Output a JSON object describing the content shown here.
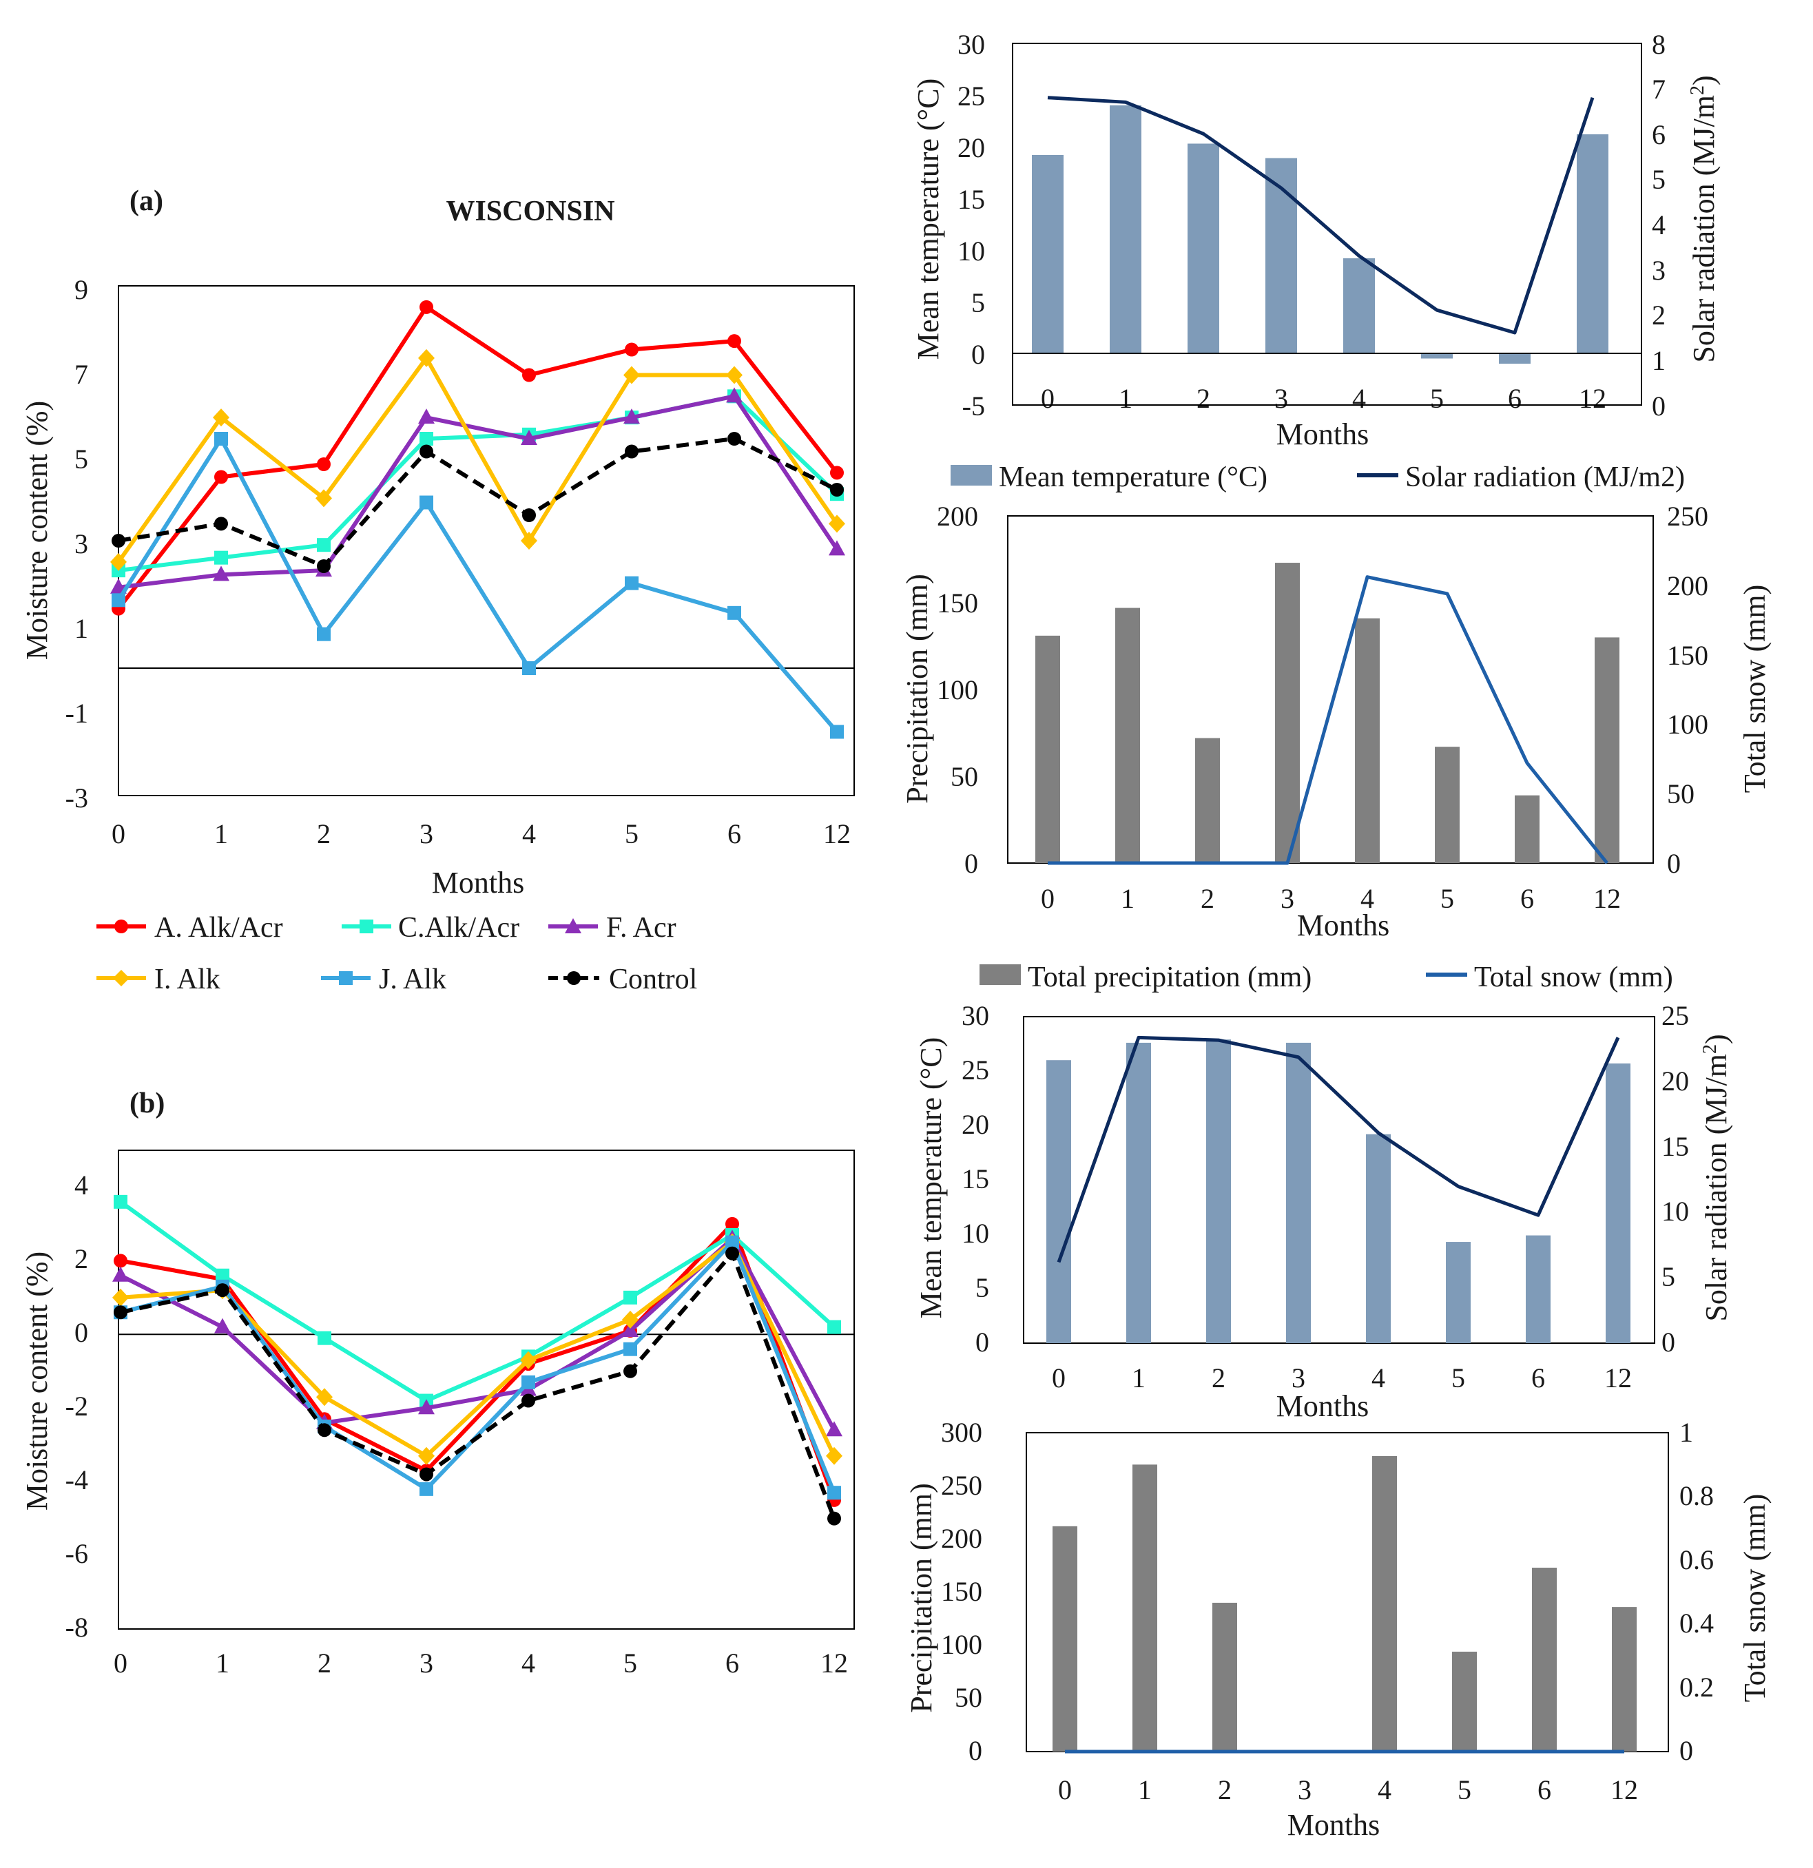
{
  "colors": {
    "a_alk_acr": "#ff0000",
    "c_alk_acr": "#22f5cf",
    "f_acr": "#8b2fb8",
    "i_alk": "#ffc000",
    "j_alk": "#3aa6e0",
    "control": "#000000",
    "temp_bar": "#7f9bb8",
    "precip_bar": "#808080",
    "solar_line": "#0c2a5e",
    "snow_line": "#1f5fa8"
  },
  "chart_data": [
    {
      "id": "a",
      "type": "line",
      "panel_label": "(a)",
      "title": "WISCONSIN",
      "categories": [
        "0",
        "1",
        "2",
        "3",
        "4",
        "5",
        "6",
        "12"
      ],
      "xlabel": "Months",
      "ylabel": "Moisture content (%)",
      "ylim": [
        -3,
        9
      ],
      "yticks": [
        "9",
        "7",
        "5",
        "3",
        "1",
        "-1",
        "-3"
      ],
      "series": [
        {
          "name": "A. Alk/Acr",
          "key": "a_alk_acr",
          "marker": "circle",
          "values": [
            1.4,
            4.5,
            4.8,
            8.5,
            6.9,
            7.5,
            7.7,
            4.6
          ]
        },
        {
          "name": "C.Alk/Acr",
          "key": "c_alk_acr",
          "marker": "square",
          "values": [
            2.3,
            2.6,
            2.9,
            5.4,
            5.5,
            5.9,
            6.4,
            4.1
          ]
        },
        {
          "name": "F. Acr",
          "key": "f_acr",
          "marker": "triangle",
          "values": [
            1.9,
            2.2,
            2.3,
            5.9,
            5.4,
            5.9,
            6.4,
            2.8
          ]
        },
        {
          "name": "I. Alk",
          "key": "i_alk",
          "marker": "diamond",
          "values": [
            2.5,
            5.9,
            4.0,
            7.3,
            3.0,
            6.9,
            6.9,
            3.4
          ]
        },
        {
          "name": "J. Alk",
          "key": "j_alk",
          "marker": "square",
          "values": [
            1.6,
            5.4,
            0.8,
            3.9,
            0.0,
            2.0,
            1.3,
            -1.5
          ]
        },
        {
          "name": "Control",
          "key": "control",
          "marker": "circle",
          "dashed": true,
          "values": [
            3.0,
            3.4,
            2.4,
            5.1,
            3.6,
            5.1,
            5.4,
            4.2
          ]
        }
      ]
    },
    {
      "id": "b",
      "type": "line",
      "panel_label": "(b)",
      "categories": [
        "0",
        "1",
        "2",
        "3",
        "4",
        "5",
        "6",
        "12"
      ],
      "ylabel": "Moisture content (%)",
      "ylim": [
        -8,
        5
      ],
      "yticks": [
        "4",
        "2",
        "0",
        "-2",
        "-4",
        "-6",
        "-8"
      ],
      "series": [
        {
          "name": "A. Alk/Acr",
          "key": "a_alk_acr",
          "marker": "circle",
          "values": [
            2.0,
            1.5,
            -2.3,
            -3.7,
            -0.8,
            0.1,
            3.0,
            -4.5
          ]
        },
        {
          "name": "C.Alk/Acr",
          "key": "c_alk_acr",
          "marker": "square",
          "values": [
            3.6,
            1.6,
            -0.1,
            -1.8,
            -0.6,
            1.0,
            2.7,
            0.2
          ]
        },
        {
          "name": "F. Acr",
          "key": "f_acr",
          "marker": "triangle",
          "values": [
            1.6,
            0.2,
            -2.4,
            -2.0,
            -1.5,
            0.1,
            2.6,
            -2.6
          ]
        },
        {
          "name": "I. Alk",
          "key": "i_alk",
          "marker": "diamond",
          "values": [
            1.0,
            1.2,
            -1.7,
            -3.3,
            -0.7,
            0.4,
            2.5,
            -3.3
          ]
        },
        {
          "name": "J. Alk",
          "key": "j_alk",
          "marker": "square",
          "values": [
            0.6,
            1.3,
            -2.5,
            -4.2,
            -1.3,
            -0.4,
            2.5,
            -4.3
          ]
        },
        {
          "name": "Control",
          "key": "control",
          "marker": "circle",
          "dashed": true,
          "values": [
            0.6,
            1.2,
            -2.6,
            -3.8,
            -1.8,
            -1.0,
            2.2,
            -5.0
          ]
        }
      ]
    },
    {
      "id": "c",
      "type": "bar",
      "categories": [
        "0",
        "1",
        "2",
        "3",
        "4",
        "5",
        "6",
        "12"
      ],
      "xlabel": "Months",
      "ylabel": "Mean temperature (°C)",
      "y2label_main": "Solar radiation (MJ/m",
      "y2label_sup": "2",
      "y2label_end": ")",
      "ylim": [
        -5,
        30
      ],
      "y2lim": [
        0,
        8
      ],
      "yticks": [
        "30",
        "25",
        "20",
        "15",
        "10",
        "5",
        "0",
        "-5"
      ],
      "y2ticks": [
        "8",
        "7",
        "6",
        "5",
        "4",
        "3",
        "2",
        "1",
        "0"
      ],
      "bar_series": {
        "name": "Mean temperature (°C)",
        "key": "temp_bar",
        "values": [
          19.2,
          24.0,
          20.3,
          18.9,
          9.2,
          -0.5,
          -1.0,
          21.2
        ]
      },
      "line_series": {
        "name": "Solar radiation (MJ/m2)",
        "key": "solar_line",
        "values": [
          6.8,
          6.7,
          6.0,
          4.8,
          3.3,
          2.1,
          1.6,
          6.8
        ]
      }
    },
    {
      "id": "d",
      "type": "bar",
      "categories": [
        "0",
        "1",
        "2",
        "3",
        "4",
        "5",
        "6",
        "12"
      ],
      "xlabel": "Months",
      "ylabel": "Precipitation (mm)",
      "y2label": "Total snow (mm)",
      "ylim": [
        0,
        200
      ],
      "y2lim": [
        0,
        250
      ],
      "yticks": [
        "200",
        "150",
        "100",
        "50",
        "0"
      ],
      "y2ticks": [
        "250",
        "200",
        "150",
        "100",
        "50",
        "0"
      ],
      "bar_series": {
        "name": "Total precipitation (mm)",
        "key": "precip_bar",
        "values": [
          131,
          147,
          72,
          173,
          141,
          67,
          39,
          130
        ]
      },
      "line_series": {
        "name": "Total snow (mm)",
        "key": "snow_line",
        "values": [
          0,
          0,
          0,
          0,
          206,
          194,
          72,
          0
        ]
      }
    },
    {
      "id": "e",
      "type": "bar",
      "categories": [
        "0",
        "1",
        "2",
        "3",
        "4",
        "5",
        "6",
        "12"
      ],
      "xlabel": "Months",
      "ylabel": "Mean temperature (°C)",
      "y2label_main": "Solar radiation (MJ/m",
      "y2label_sup": "2",
      "y2label_end": ")",
      "ylim": [
        0,
        30
      ],
      "y2lim": [
        0,
        25
      ],
      "yticks": [
        "30",
        "25",
        "20",
        "15",
        "10",
        "5",
        "0"
      ],
      "y2ticks": [
        "25",
        "20",
        "15",
        "10",
        "5",
        "0"
      ],
      "bar_series": {
        "name": "Mean temperature (°C)",
        "key": "temp_bar",
        "values": [
          26.0,
          27.6,
          27.9,
          27.6,
          19.2,
          9.3,
          9.9,
          25.7
        ]
      },
      "line_series": {
        "name": "Solar radiation (MJ/m2)",
        "key": "solar_line",
        "values": [
          6.2,
          23.4,
          23.2,
          21.9,
          16.1,
          12.0,
          9.8,
          23.4
        ]
      }
    },
    {
      "id": "f",
      "type": "bar",
      "categories": [
        "0",
        "1",
        "2",
        "3",
        "4",
        "5",
        "6",
        "12"
      ],
      "xlabel": "Months",
      "ylabel": "Precipitation (mm)",
      "y2label": "Total snow (mm)",
      "ylim": [
        0,
        300
      ],
      "y2lim": [
        0,
        1
      ],
      "yticks": [
        "300",
        "250",
        "200",
        "150",
        "100",
        "50",
        "0"
      ],
      "y2ticks": [
        "1",
        "0.8",
        "0.6",
        "0.4",
        "0.2",
        "0"
      ],
      "bar_series": {
        "name": "Total precipitation (mm)",
        "key": "precip_bar",
        "values": [
          212,
          270,
          140,
          0,
          278,
          94,
          173,
          136
        ]
      },
      "line_series": {
        "name": "Total snow (mm)",
        "key": "snow_line",
        "values": [
          0,
          0,
          0,
          0,
          0,
          0,
          0,
          0
        ]
      }
    }
  ]
}
